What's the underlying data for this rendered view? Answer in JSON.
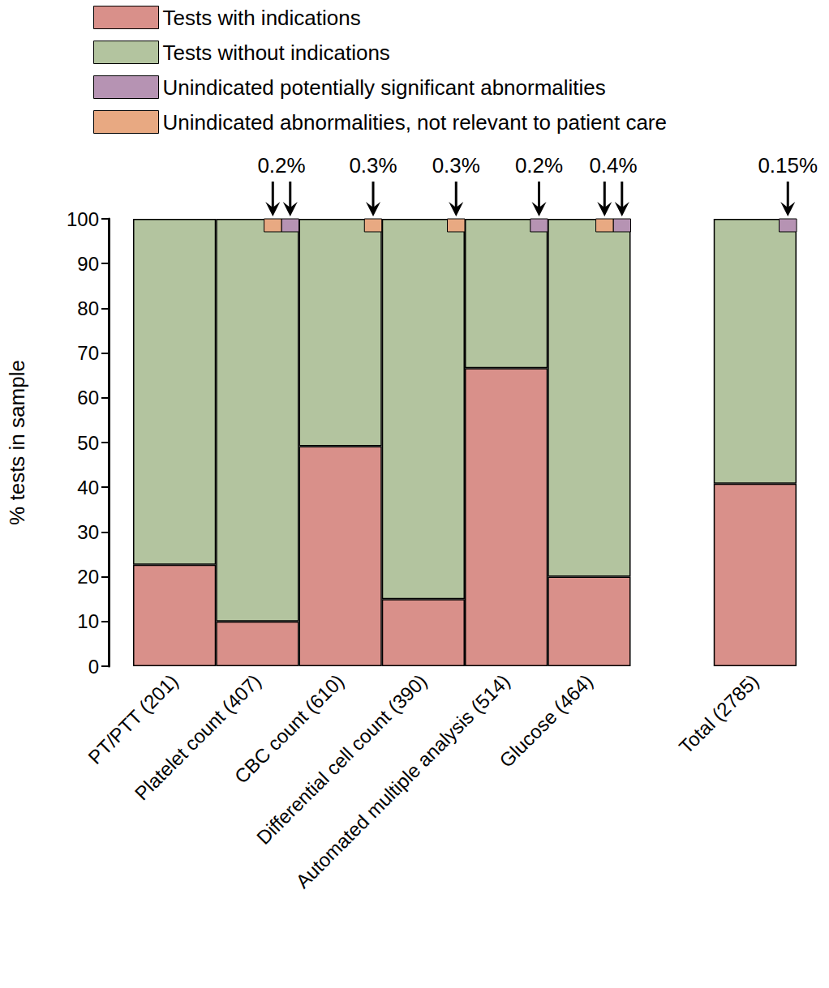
{
  "chart_data": {
    "type": "bar",
    "stacked": true,
    "ylabel": "% tests in sample",
    "categories": [
      "PT/PTT (201)",
      "Platelet count (407)",
      "CBC count (610)",
      "Differential cell count (390)",
      "Automated multiple analysis (514)",
      "Glucose (464)",
      null,
      "Total (2785)"
    ],
    "series": [
      {
        "name": "Tests with indications",
        "color": "#d9908a",
        "values": [
          22.7,
          10,
          49.2,
          15,
          66.6,
          20,
          null,
          40.8
        ]
      },
      {
        "name": "Tests without indications",
        "color": "#b3c49f",
        "values": [
          77.3,
          90,
          50.8,
          85,
          33.4,
          80,
          null,
          59.2
        ]
      },
      {
        "name": "Unindicated potentially significant abnormalities",
        "color": "#b693b3",
        "type": "marker",
        "categories": [
          "Platelet count (407)",
          "Automated multiple analysis (514)",
          "Glucose (464)",
          "Total (2785)"
        ]
      },
      {
        "name": "Unindicated abnormalities, not relevant to patient care",
        "color": "#e8a982",
        "type": "marker",
        "categories": [
          "Platelet count (407)",
          "CBC count (610)",
          "Differential cell count (390)",
          "Glucose (464)"
        ]
      }
    ],
    "annotations": [
      {
        "category": "Platelet count (407)",
        "text": "0.2%"
      },
      {
        "category": "CBC count (610)",
        "text": "0.3%"
      },
      {
        "category": "Differential cell count (390)",
        "text": "0.3%"
      },
      {
        "category": "Automated multiple analysis (514)",
        "text": "0.2%"
      },
      {
        "category": "Glucose (464)",
        "text": "0.4%"
      },
      {
        "category": "Total (2785)",
        "text": "0.15%"
      }
    ],
    "ylim": [
      0,
      100
    ],
    "yticks": [
      0,
      10,
      20,
      30,
      40,
      50,
      60,
      70,
      80,
      90,
      100
    ],
    "grid": false,
    "legend": "top-left"
  }
}
